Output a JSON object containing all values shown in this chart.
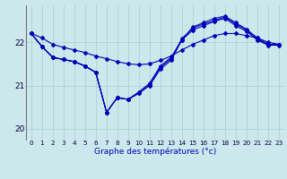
{
  "xlabel": "Graphe des températures (°c)",
  "background_color": "#cce8ec",
  "grid_color": "#aacccc",
  "line_color": "#0000bb",
  "hours": [
    0,
    1,
    2,
    3,
    4,
    5,
    6,
    7,
    8,
    9,
    10,
    11,
    12,
    13,
    14,
    15,
    16,
    17,
    18,
    19,
    20,
    21,
    22,
    23
  ],
  "series_zigzag": [
    22.2,
    21.9,
    21.65,
    21.6,
    21.55,
    21.45,
    21.3,
    20.38,
    20.72,
    20.68,
    20.85,
    21.05,
    21.45,
    21.65,
    22.05,
    22.35,
    22.45,
    22.55,
    22.6,
    22.45,
    22.3,
    22.1,
    21.95,
    21.95
  ],
  "series_straight": [
    22.2,
    22.1,
    21.95,
    21.88,
    21.82,
    21.76,
    21.68,
    21.62,
    21.55,
    21.5,
    21.48,
    21.5,
    21.58,
    21.68,
    21.82,
    21.95,
    22.05,
    22.15,
    22.2,
    22.2,
    22.15,
    22.1,
    22.0,
    21.95
  ],
  "series_upper1": [
    22.2,
    21.9,
    21.65,
    21.6,
    21.55,
    21.45,
    21.3,
    20.38,
    20.72,
    20.68,
    20.82,
    21.02,
    21.42,
    21.62,
    22.08,
    22.32,
    22.42,
    22.5,
    22.58,
    22.42,
    22.28,
    22.08,
    21.95,
    21.95
  ],
  "series_upper2": [
    22.2,
    21.9,
    21.65,
    21.6,
    21.55,
    21.45,
    21.3,
    20.38,
    20.72,
    20.68,
    20.82,
    21.0,
    21.38,
    21.58,
    22.05,
    22.28,
    22.38,
    22.48,
    22.55,
    22.38,
    22.25,
    22.05,
    21.93,
    21.93
  ],
  "ylim": [
    19.75,
    22.85
  ],
  "yticks": [
    20,
    21,
    22
  ],
  "xlim": [
    -0.5,
    23.5
  ],
  "figsize": [
    3.2,
    2.0
  ],
  "dpi": 100
}
